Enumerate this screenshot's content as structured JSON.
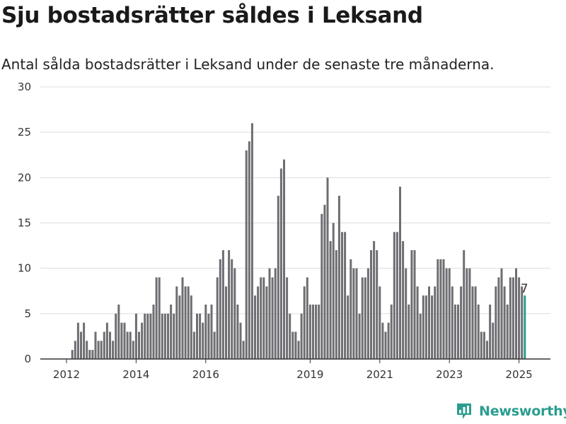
{
  "title": "Sju bostadsrätter såldes i Leksand",
  "subtitle": "Antal sålda bostadsrätter i Leksand under de senaste tre månaderna.",
  "brand": {
    "name": "Newsworthy",
    "icon": "newsworthy-logo-icon"
  },
  "colors": {
    "bar": "#6e6d72",
    "highlight": "#2a9d8f",
    "grid": "#dcdcdc",
    "axis": "#333333"
  },
  "chart_data": {
    "type": "bar",
    "title": "",
    "xlabel": "",
    "ylabel": "",
    "ylim": [
      0,
      30
    ],
    "yticks": [
      "0",
      "5",
      "10",
      "15",
      "20",
      "25",
      "30"
    ],
    "xticks": [
      "2012",
      "2014",
      "2016",
      "2019",
      "2021",
      "2023",
      "2025"
    ],
    "grid": true,
    "highlight_label": "7",
    "start": "2012-01",
    "end": "2025-02",
    "values": [
      0,
      0,
      1,
      2,
      4,
      3,
      4,
      2,
      1,
      1,
      3,
      2,
      2,
      3,
      4,
      3,
      2,
      5,
      6,
      4,
      4,
      3,
      3,
      2,
      5,
      3,
      4,
      5,
      5,
      5,
      6,
      9,
      9,
      5,
      5,
      5,
      6,
      5,
      8,
      7,
      9,
      8,
      8,
      7,
      3,
      5,
      5,
      4,
      6,
      5,
      6,
      3,
      9,
      11,
      12,
      8,
      12,
      11,
      10,
      6,
      4,
      2,
      23,
      24,
      26,
      7,
      8,
      9,
      9,
      8,
      10,
      9,
      10,
      18,
      21,
      22,
      9,
      5,
      3,
      3,
      2,
      5,
      8,
      9,
      6,
      6,
      6,
      6,
      16,
      17,
      20,
      13,
      15,
      12,
      18,
      14,
      14,
      7,
      11,
      10,
      10,
      5,
      9,
      9,
      10,
      12,
      13,
      12,
      8,
      4,
      3,
      4,
      6,
      14,
      14,
      19,
      13,
      10,
      6,
      12,
      12,
      8,
      5,
      7,
      7,
      8,
      7,
      8,
      11,
      11,
      11,
      10,
      10,
      8,
      6,
      6,
      8,
      12,
      10,
      10,
      8,
      8,
      6,
      3,
      3,
      2,
      6,
      4,
      8,
      9,
      10,
      8,
      6,
      9,
      9,
      10,
      9,
      8,
      7
    ]
  }
}
